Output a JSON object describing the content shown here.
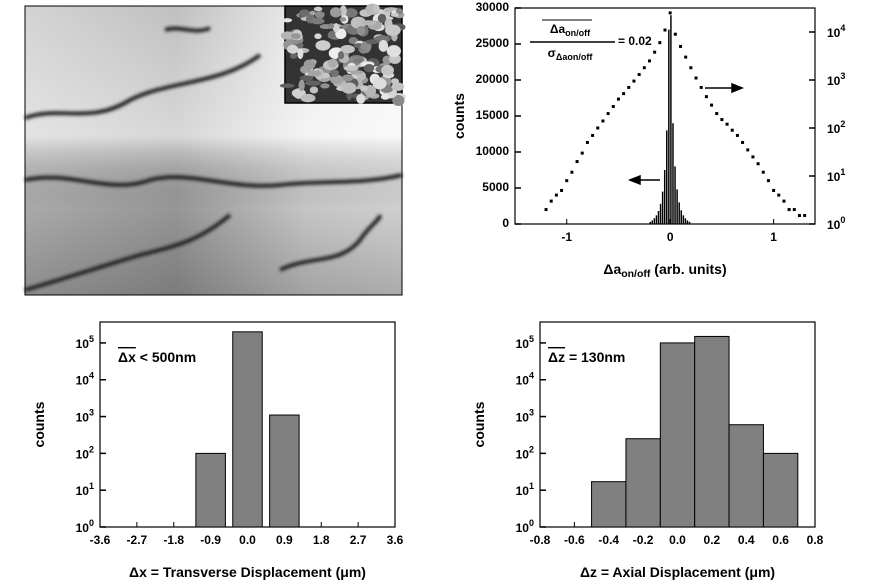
{
  "chart_data": [
    {
      "type": "histogram",
      "x_label": "Δa_{on/off} (arb. units)",
      "y_label": "counts",
      "annotation": {
        "numerator": "Δa_{on/off}",
        "denominator": "σ_{Δaon/off}",
        "text": "= 0.02"
      },
      "xlim": [
        -1.5,
        1.4
      ],
      "xticks": [
        -1,
        0,
        1
      ],
      "ylim": [
        0,
        30000
      ],
      "yticks": [
        0,
        5000,
        10000,
        15000,
        20000,
        25000,
        30000
      ],
      "y2lim": [
        1,
        31623
      ],
      "y2log": true,
      "y2ticks": [
        {
          "value": 1,
          "label": "10^{0}"
        },
        {
          "value": 10,
          "label": "10^{1}"
        },
        {
          "value": 100,
          "label": "10^{2}"
        },
        {
          "value": 1000,
          "label": "10^{3}"
        },
        {
          "value": 10000,
          "label": "10^{4}"
        }
      ],
      "series": [
        {
          "type": "histogram",
          "color": "#000000",
          "bins": [
            -0.2,
            -0.18,
            -0.16,
            -0.14,
            -0.12,
            -0.1,
            -0.08,
            -0.06,
            -0.04,
            -0.02,
            0,
            0.02,
            0.04,
            0.06,
            0.08,
            0.1,
            0.12,
            0.14,
            0.16,
            0.18,
            0.2
          ],
          "values": [
            300,
            500,
            800,
            1200,
            1800,
            2800,
            4500,
            7500,
            13000,
            27000,
            29000,
            14000,
            8000,
            4800,
            3000,
            1900,
            1200,
            800,
            500,
            300
          ]
        },
        {
          "type": "scatter",
          "axis": "y2",
          "color": "#000000",
          "x": [
            -1.2,
            -1.15,
            -1.1,
            -1.05,
            -1.0,
            -0.95,
            -0.9,
            -0.85,
            -0.8,
            -0.75,
            -0.7,
            -0.65,
            -0.6,
            -0.55,
            -0.5,
            -0.45,
            -0.4,
            -0.35,
            -0.3,
            -0.25,
            -0.2,
            -0.15,
            -0.1,
            -0.05,
            0,
            0.05,
            0.1,
            0.15,
            0.2,
            0.25,
            0.3,
            0.35,
            0.4,
            0.45,
            0.5,
            0.55,
            0.6,
            0.65,
            0.7,
            0.75,
            0.8,
            0.85,
            0.9,
            0.95,
            1.0,
            1.05,
            1.1,
            1.15,
            1.2,
            1.25,
            1.3
          ],
          "values": [
            2,
            3,
            4,
            5,
            8,
            12,
            20,
            30,
            50,
            70,
            100,
            140,
            200,
            280,
            400,
            520,
            700,
            950,
            1300,
            1800,
            2500,
            3800,
            6000,
            11000,
            25000,
            9000,
            5000,
            3000,
            1800,
            1100,
            700,
            450,
            300,
            200,
            150,
            120,
            90,
            70,
            50,
            35,
            25,
            18,
            12,
            8,
            5,
            4,
            3,
            2,
            2,
            1.5,
            1.5
          ]
        }
      ]
    },
    {
      "type": "bar",
      "x_label": "Δx = Transverse Displacement (μm)",
      "y_label": "counts",
      "annotation": "~{Δx} < 500nm",
      "x": [
        -0.9,
        0.0,
        0.9
      ],
      "values": [
        100,
        200000,
        1100
      ],
      "color": "#808080",
      "xlim": [
        -3.6,
        3.6
      ],
      "xticks": [
        {
          "value": -3.6,
          "label": "-3.6"
        },
        {
          "value": -2.7,
          "label": "-2.7"
        },
        {
          "value": -1.8,
          "label": "-1.8"
        },
        {
          "value": -0.9,
          "label": "-0.9"
        },
        {
          "value": 0,
          "label": "0.0"
        },
        {
          "value": 0.9,
          "label": "0.9"
        },
        {
          "value": 1.8,
          "label": "1.8"
        },
        {
          "value": 2.7,
          "label": "2.7"
        },
        {
          "value": 3.6,
          "label": "3.6"
        }
      ],
      "ylim": [
        1,
        370000
      ],
      "ylog": true,
      "yticks": [
        {
          "value": 1,
          "label": "10^{0}"
        },
        {
          "value": 10,
          "label": "10^{1}"
        },
        {
          "value": 100,
          "label": "10^{2}"
        },
        {
          "value": 1000,
          "label": "10^{3}"
        },
        {
          "value": 10000,
          "label": "10^{4}"
        },
        {
          "value": 100000,
          "label": "10^{5}"
        }
      ]
    },
    {
      "type": "bar",
      "x_label": "Δz = Axial Displacement (μm)",
      "y_label": "counts",
      "annotation": "~{Δz} = 130nm",
      "x": [
        -0.4,
        -0.2,
        0.0,
        0.2,
        0.4,
        0.6
      ],
      "values": [
        17,
        250,
        100000,
        150000,
        600,
        100
      ],
      "color": "#808080",
      "xlim": [
        -0.8,
        0.8
      ],
      "xticks": [
        -0.8,
        -0.6,
        -0.4,
        -0.2,
        {
          "value": 0,
          "label": "0.0"
        },
        0.2,
        0.4,
        0.6,
        0.8
      ],
      "ylim": [
        1,
        370000
      ],
      "ylog": true,
      "yticks": [
        {
          "value": 1,
          "label": "10^{0}"
        },
        {
          "value": 10,
          "label": "10^{1}"
        },
        {
          "value": 100,
          "label": "10^{2}"
        },
        {
          "value": 1000,
          "label": "10^{3}"
        },
        {
          "value": 10000,
          "label": "10^{4}"
        },
        {
          "value": 100000,
          "label": "10^{5}"
        }
      ]
    }
  ]
}
